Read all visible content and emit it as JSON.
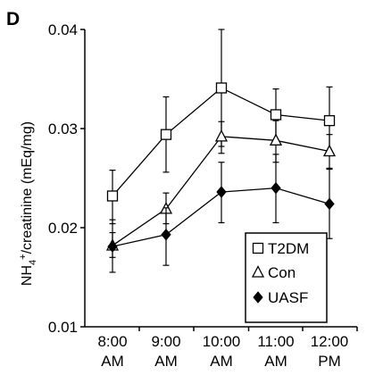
{
  "panel_label": "D",
  "chart_data": {
    "type": "line",
    "categories": [
      "8:00 AM",
      "9:00 AM",
      "10:00 AM",
      "11:00 AM",
      "12:00 PM"
    ],
    "category_lines": [
      [
        "8:00",
        "AM"
      ],
      [
        "9:00",
        "AM"
      ],
      [
        "10:00",
        "AM"
      ],
      [
        "11:00",
        "AM"
      ],
      [
        "12:00",
        "PM"
      ]
    ],
    "ylabel_main": "NH",
    "ylabel_sub": "4",
    "ylabel_sup": "+",
    "ylabel_rest": "/creatinine (mEq/mg)",
    "ylim": [
      0.01,
      0.04
    ],
    "yticks": [
      0.01,
      0.02,
      0.03,
      0.04
    ],
    "ytick_labels": [
      "0.01",
      "0.02",
      "0.03",
      "0.04"
    ],
    "grid": false,
    "legend_position": "bottom-right",
    "series": [
      {
        "name": "T2DM",
        "marker": "open-square",
        "values": [
          0.0232,
          0.0294,
          0.0341,
          0.0314,
          0.0308
        ],
        "error_low": [
          0.0204,
          0.0256,
          0.0282,
          0.0286,
          0.0275
        ],
        "error_high": [
          0.0258,
          0.0332,
          0.04,
          0.034,
          0.0342
        ]
      },
      {
        "name": "Con",
        "marker": "open-triangle",
        "values": [
          0.0182,
          0.0219,
          0.0292,
          0.0288,
          0.0277
        ],
        "error_low": [
          0.017,
          0.0204,
          0.0275,
          0.0266,
          0.026
        ],
        "error_high": [
          0.0195,
          0.0235,
          0.0307,
          0.0308,
          0.0294
        ]
      },
      {
        "name": "UASF",
        "marker": "filled-diamond",
        "values": [
          0.0181,
          0.0193,
          0.0236,
          0.024,
          0.0224
        ],
        "error_low": [
          0.0155,
          0.0162,
          0.0205,
          0.0205,
          0.0189
        ],
        "error_high": [
          0.0208,
          0.022,
          0.0266,
          0.0274,
          0.0259
        ]
      }
    ]
  }
}
